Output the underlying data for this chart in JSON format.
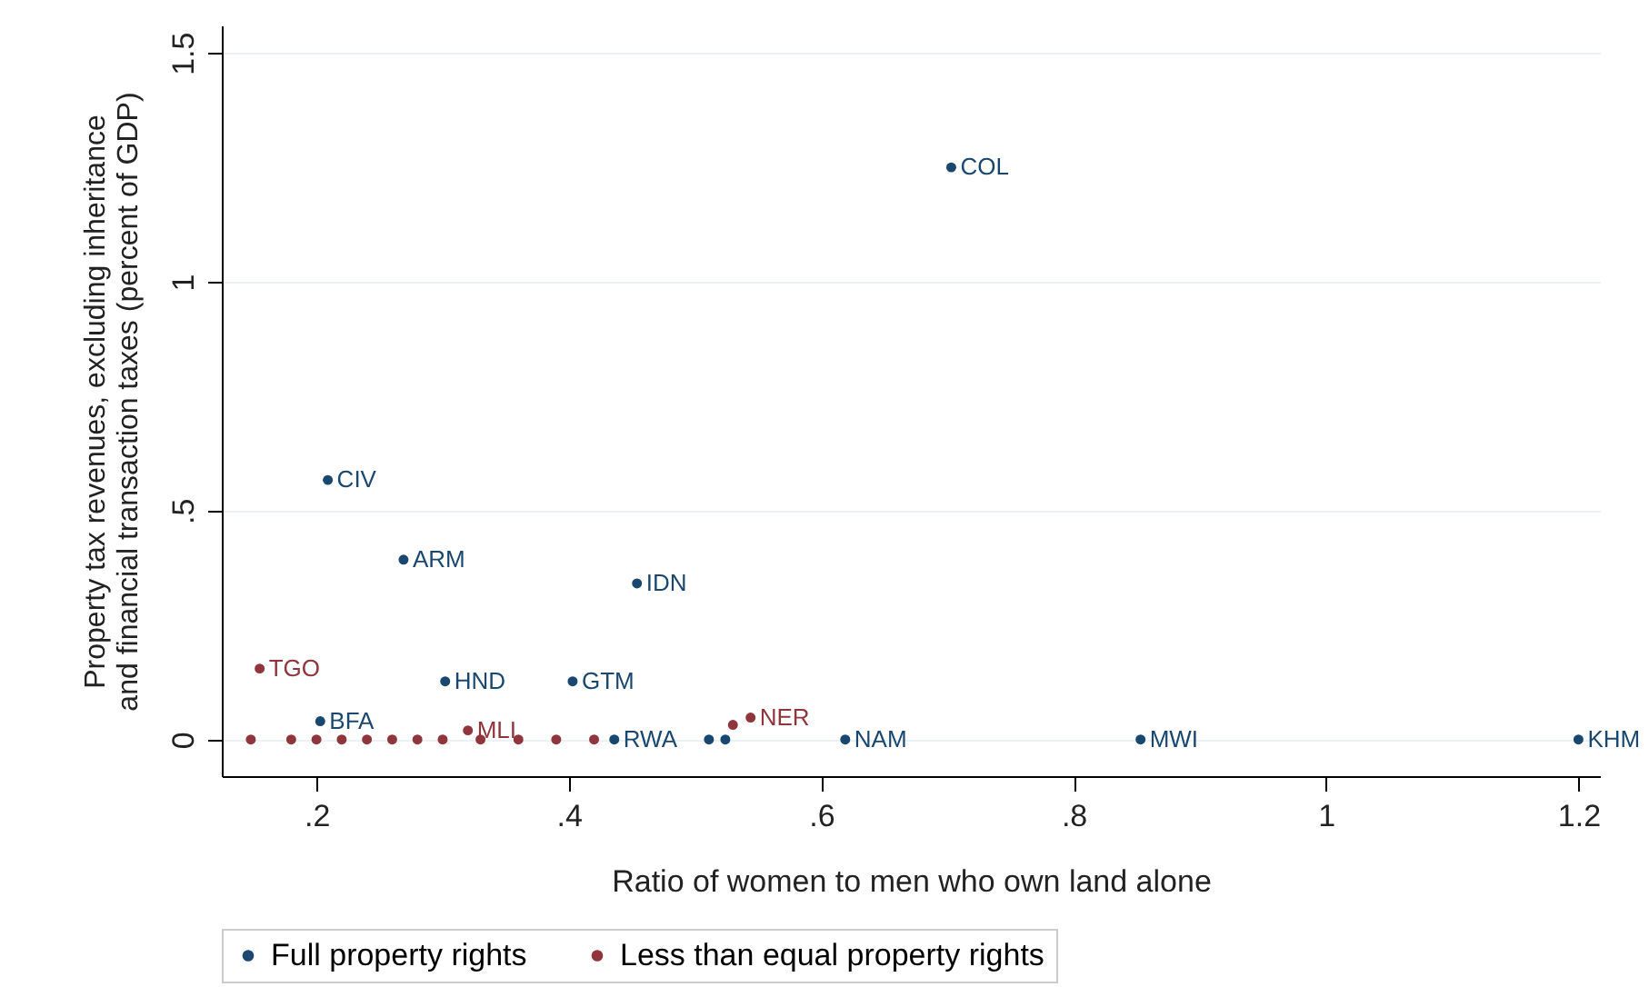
{
  "chart_data": {
    "type": "scatter",
    "xlabel": "Ratio of women to men who own land alone",
    "ylabel": "Property tax revenues, excluding inheritance\nand financial transaction taxes (percent of GDP)",
    "series": [
      {
        "name": "Full property rights",
        "color": "#1a476f",
        "x": [
          0.703,
          0.209,
          0.269,
          0.454,
          0.302,
          0.403,
          0.203,
          0.436,
          0.511,
          0.524,
          0.619,
          0.853,
          1.2
        ],
        "values": [
          1.25,
          0.567,
          0.393,
          0.341,
          0.127,
          0.127,
          0.04,
          0,
          0,
          0,
          0,
          0,
          0
        ],
        "value_labels": [
          "COL",
          "CIV",
          "ARM",
          "IDN",
          "HND",
          "GTM",
          "BFA",
          "RWA",
          null,
          null,
          "NAM",
          "MWI",
          "KHM"
        ]
      },
      {
        "name": "Less than equal property rights",
        "color": "#90353b",
        "x": [
          0.155,
          0.148,
          0.32,
          0.544,
          0.53,
          0.18,
          0.2,
          0.22,
          0.24,
          0.26,
          0.28,
          0.3,
          0.33,
          0.36,
          0.39,
          0.42
        ],
        "values": [
          0.155,
          0,
          0.02,
          0.048,
          0.032,
          0,
          0,
          0,
          0,
          0,
          0,
          0,
          0,
          0,
          0,
          0
        ],
        "value_labels": [
          "TGO",
          null,
          "MLI",
          "NER",
          null,
          null,
          null,
          null,
          null,
          null,
          null,
          null,
          null,
          null,
          null,
          null
        ]
      }
    ],
    "xlim": [
      0.125,
      1.217
    ],
    "xticks": [
      {
        "value": 0.2,
        "label": ".2"
      },
      {
        "value": 0.4,
        "label": ".4"
      },
      {
        "value": 0.6,
        "label": ".6"
      },
      {
        "value": 0.8,
        "label": ".8"
      },
      1,
      1.2
    ],
    "ylim": [
      -0.08,
      1.56
    ],
    "yticks": [
      0,
      {
        "value": 0.5,
        "label": ".5"
      },
      1,
      1.5
    ],
    "grid": "y",
    "legend": "bottom",
    "marker": "circle"
  }
}
